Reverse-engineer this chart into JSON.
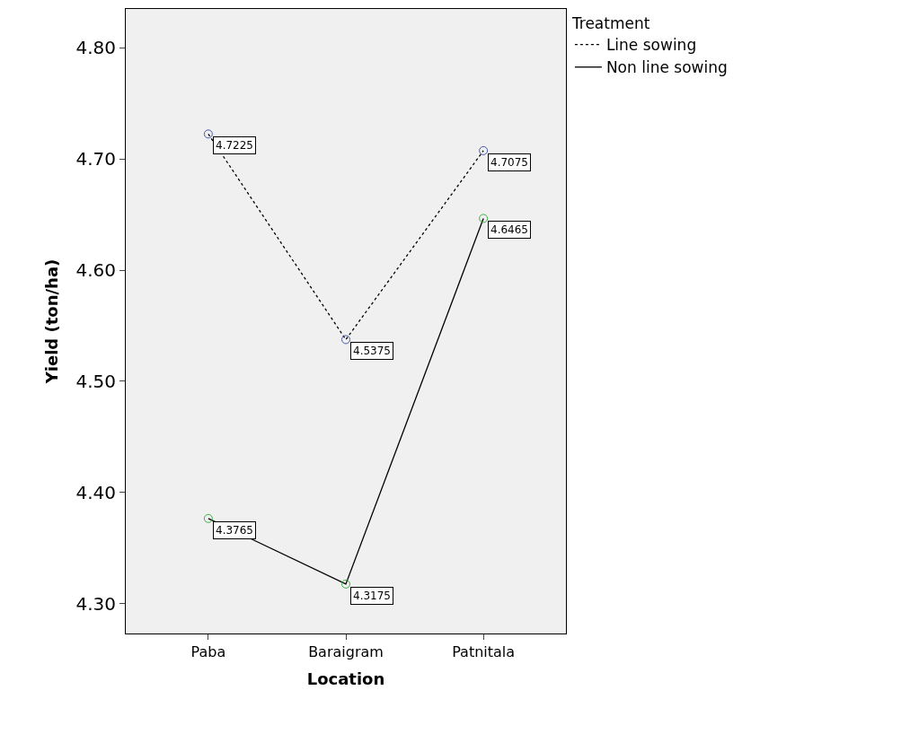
{
  "chart_data": {
    "type": "line",
    "xlabel": "Location",
    "ylabel": "Yield (ton/ha)",
    "legend_title": "Treatment",
    "categories": [
      "Paba",
      "Baraigram",
      "Patnitala"
    ],
    "series": [
      {
        "name": "Line sowing",
        "color": "#000000",
        "colors": [
          "#4a5aa8",
          "#4a5aa8",
          "#4a5aa8"
        ],
        "line_style": "dotted",
        "values": [
          4.7225,
          4.5375,
          4.7075
        ]
      },
      {
        "name": "Non line sowing",
        "color": "#000000",
        "colors": [
          "#3cb043",
          "#3cb043",
          "#3cb043"
        ],
        "line_style": "solid",
        "values": [
          4.3765,
          4.3175,
          4.6465
        ]
      }
    ],
    "ylim": [
      4.273,
      4.835
    ],
    "yticks": [
      {
        "value": 4.3,
        "label": "4.30"
      },
      {
        "value": 4.4,
        "label": "4.40"
      },
      {
        "value": 4.5,
        "label": "4.50"
      },
      {
        "value": 4.6,
        "label": "4.60"
      },
      {
        "value": 4.7,
        "label": "4.70"
      },
      {
        "value": 4.8,
        "label": "4.80"
      }
    ],
    "grid": false,
    "legend": "top right",
    "marker": "circle",
    "data_labels": true
  }
}
